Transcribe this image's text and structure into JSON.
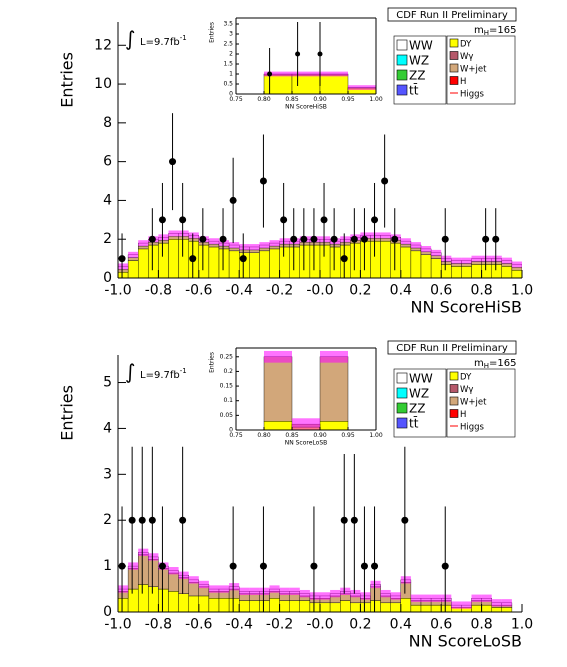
{
  "chart_data": [
    {
      "type": "histogram",
      "title": "CDF Run II Preliminary",
      "xlabel": "NN ScoreHiSB",
      "ylabel": "Entries",
      "mass_label": [
        "m",
        "H",
        "=165"
      ],
      "lumi_label": [
        "∫",
        "L=9.7fb",
        "-1"
      ],
      "xlim": [
        -1,
        1
      ],
      "ylim": [
        0,
        13.2
      ],
      "xticks": [
        {
          "value": -1,
          "label": "-1.0"
        },
        -0.8,
        -0.6,
        -0.4,
        -0.2,
        {
          "value": 0,
          "label": "-0.0"
        },
        0.2,
        0.4,
        0.6,
        0.8,
        {
          "value": 1,
          "label": "1.0"
        }
      ],
      "yticks": [
        0,
        2,
        4,
        6,
        8,
        10,
        12
      ],
      "bins": [
        -1,
        -0.95,
        -0.9,
        -0.85,
        -0.8,
        -0.75,
        -0.7,
        -0.65,
        -0.6,
        -0.55,
        -0.5,
        -0.45,
        -0.4,
        -0.35,
        -0.3,
        -0.25,
        -0.2,
        -0.15,
        -0.1,
        -0.05,
        0,
        0.05,
        0.1,
        0.15,
        0.2,
        0.25,
        0.3,
        0.35,
        0.4,
        0.45,
        0.5,
        0.55,
        0.6,
        0.65,
        0.7,
        0.75,
        0.8,
        0.85,
        0.9,
        0.95,
        1
      ],
      "series": [
        {
          "name": "DY",
          "color": "#ffff00",
          "values": [
            0.3,
            0.9,
            1.5,
            1.7,
            1.8,
            2.0,
            2.0,
            1.9,
            1.7,
            1.6,
            1.5,
            1.4,
            1.3,
            1.3,
            1.4,
            1.5,
            1.6,
            1.6,
            1.7,
            1.7,
            1.7,
            1.6,
            1.7,
            1.8,
            1.9,
            1.9,
            1.9,
            1.8,
            1.6,
            1.4,
            1.2,
            1.0,
            0.7,
            0.6,
            0.6,
            0.7,
            0.7,
            0.7,
            0.6,
            0.4
          ]
        },
        {
          "name": "Wγ",
          "color": "#b5586a"
        },
        {
          "name": "W+jet",
          "color": "#d2a77a",
          "values": [
            0.15,
            0.15,
            0.15,
            0.15,
            0.15,
            0.15,
            0.15,
            0.15,
            0.15,
            0.15,
            0.15,
            0.15,
            0.15,
            0.15,
            0.15,
            0.15,
            0.15,
            0.15,
            0.15,
            0.15,
            0.15,
            0.15,
            0.15,
            0.15,
            0.15,
            0.15,
            0.15,
            0.15,
            0.15,
            0.15,
            0.15,
            0.15,
            0.15,
            0.15,
            0.15,
            0.15,
            0.15,
            0.15,
            0.15,
            0.15
          ]
        },
        {
          "name": "H",
          "color": "#ff0000"
        },
        {
          "name": "Higgs",
          "color": "#ff0000",
          "style": "line"
        },
        {
          "name": "WW",
          "color": "#ffffff",
          "values": [
            0.15,
            0.15,
            0.15,
            0.15,
            0.15,
            0.15,
            0.15,
            0.15,
            0.15,
            0.15,
            0.15,
            0.15,
            0.15,
            0.15,
            0.15,
            0.15,
            0.15,
            0.15,
            0.15,
            0.15,
            0.15,
            0.15,
            0.15,
            0.15,
            0.15,
            0.15,
            0.15,
            0.15,
            0.15,
            0.15,
            0.15,
            0.15,
            0.15,
            0.15,
            0.15,
            0.15,
            0.15,
            0.15,
            0.15,
            0.15
          ]
        },
        {
          "name": "WZ",
          "color": "#00ffff"
        },
        {
          "name": "ZZ",
          "color": "#33cc33"
        },
        {
          "name": "tt̄",
          "color": "#5555ff"
        }
      ],
      "uncertainty": 0.15,
      "uncertainty_color": "#ff00ff",
      "points": {
        "x": [
          -0.98,
          -0.83,
          -0.78,
          -0.73,
          -0.68,
          -0.63,
          -0.58,
          -0.48,
          -0.43,
          -0.38,
          -0.28,
          -0.18,
          -0.13,
          -0.08,
          -0.03,
          0.02,
          0.07,
          0.12,
          0.17,
          0.22,
          0.27,
          0.32,
          0.37,
          0.62,
          0.82,
          0.87
        ],
        "values": [
          1,
          2,
          3,
          6,
          3,
          1,
          2,
          2,
          4,
          1,
          5,
          3,
          2,
          2,
          2,
          3,
          2,
          1,
          2,
          2,
          3,
          5,
          2,
          2,
          2,
          2
        ],
        "errors": [
          1.3,
          1.6,
          1.9,
          2.5,
          1.9,
          1.3,
          1.6,
          1.6,
          2.2,
          1.3,
          2.4,
          1.9,
          1.6,
          1.6,
          1.6,
          1.9,
          1.6,
          1.3,
          1.6,
          1.6,
          1.9,
          2.4,
          1.6,
          1.6,
          1.6,
          1.6
        ]
      }
    },
    {
      "type": "histogram",
      "xlabel": "NN ScoreHiSB",
      "ylabel": "Entries",
      "xlim": [
        0.75,
        1
      ],
      "ylim": [
        0,
        3.8
      ],
      "xticks": [
        0.75,
        {
          "value": 0.8,
          "label": "0.80"
        },
        0.85,
        {
          "value": 0.9,
          "label": "0.90"
        },
        0.95,
        {
          "value": 1,
          "label": "1.00"
        }
      ],
      "yticks": [
        0,
        0.5,
        1,
        1.5,
        2,
        2.5,
        3,
        3.5
      ],
      "bins": [
        0.75,
        0.8,
        0.85,
        0.9,
        0.95,
        1
      ],
      "series": [
        {
          "color": "#ffff00",
          "values": [
            0,
            0.95,
            0.95,
            0.95,
            0.3
          ]
        },
        {
          "color": "#d2a77a",
          "values": [
            0,
            0.05,
            0.05,
            0.05,
            0.02
          ]
        }
      ],
      "uncertainty": 0.12,
      "uncertainty_color": "#ff00ff",
      "points": {
        "x": [
          0.81,
          0.86,
          0.9
        ],
        "values": [
          1,
          2,
          2
        ],
        "errors": [
          1.3,
          1.6,
          1.6
        ]
      }
    },
    {
      "type": "histogram",
      "title": "CDF Run II Preliminary",
      "xlabel": "NN ScoreLoSB",
      "ylabel": "Entries",
      "mass_label": [
        "m",
        "H",
        "=165"
      ],
      "lumi_label": [
        "∫",
        "L=9.7fb",
        "-1"
      ],
      "xlim": [
        -1,
        1
      ],
      "ylim": [
        0,
        5.6
      ],
      "xticks": [
        {
          "value": -1,
          "label": "-1.0"
        },
        -0.8,
        -0.6,
        -0.4,
        -0.2,
        {
          "value": 0,
          "label": "-0.0"
        },
        0.2,
        0.4,
        0.6,
        0.8,
        {
          "value": 1,
          "label": "1.0"
        }
      ],
      "yticks": [
        0,
        1,
        2,
        3,
        4,
        5
      ],
      "bins": [
        -1,
        -0.95,
        -0.9,
        -0.85,
        -0.8,
        -0.75,
        -0.7,
        -0.65,
        -0.6,
        -0.55,
        -0.5,
        -0.45,
        -0.4,
        -0.35,
        -0.3,
        -0.25,
        -0.2,
        -0.15,
        -0.1,
        -0.05,
        0,
        0.05,
        0.1,
        0.15,
        0.2,
        0.25,
        0.3,
        0.35,
        0.4,
        0.45,
        0.5,
        0.55,
        0.6,
        0.65,
        0.7,
        0.75,
        0.8,
        0.85,
        0.9,
        0.95,
        1
      ],
      "series": [
        {
          "name": "DY",
          "color": "#ffff00",
          "values": [
            0.3,
            0.5,
            0.6,
            0.55,
            0.5,
            0.45,
            0.4,
            0.35,
            0.35,
            0.3,
            0.3,
            0.3,
            0.25,
            0.25,
            0.25,
            0.3,
            0.25,
            0.25,
            0.25,
            0.2,
            0.2,
            0.2,
            0.25,
            0.2,
            0.2,
            0.25,
            0.2,
            0.2,
            0.3,
            0.15,
            0.15,
            0.15,
            0.15,
            0.1,
            0.1,
            0.15,
            0.15,
            0.1,
            0.1,
            0
          ]
        },
        {
          "name": "Wγ",
          "color": "#b5586a"
        },
        {
          "name": "W+jet",
          "color": "#d2a77a",
          "values": [
            0.15,
            0.45,
            0.65,
            0.6,
            0.45,
            0.4,
            0.35,
            0.3,
            0.2,
            0.15,
            0.15,
            0.2,
            0.15,
            0.15,
            0.15,
            0.15,
            0.15,
            0.15,
            0.1,
            0.1,
            0.1,
            0.15,
            0.15,
            0.15,
            0.1,
            0.3,
            0.15,
            0.1,
            0.35,
            0.1,
            0.1,
            0.1,
            0.1,
            0,
            0,
            0.1,
            0.1,
            0.05,
            0.05,
            0
          ]
        },
        {
          "name": "H",
          "color": "#ff0000"
        },
        {
          "name": "Higgs",
          "color": "#ff0000",
          "style": "line"
        },
        {
          "name": "WW",
          "color": "#ffffff",
          "values": [
            0.05,
            0.05,
            0.05,
            0.05,
            0.05,
            0.05,
            0.05,
            0.05,
            0.05,
            0.05,
            0.05,
            0.05,
            0.05,
            0.05,
            0.05,
            0.05,
            0.05,
            0.05,
            0.05,
            0.05,
            0.05,
            0.05,
            0.05,
            0.05,
            0.05,
            0.05,
            0.05,
            0.05,
            0.05,
            0.05,
            0.05,
            0.05,
            0.05,
            0.05,
            0.05,
            0.05,
            0.05,
            0.05,
            0.05,
            0
          ]
        },
        {
          "name": "WZ",
          "color": "#00ffff"
        },
        {
          "name": "ZZ",
          "color": "#33cc33"
        },
        {
          "name": "tt̄",
          "color": "#5555ff"
        }
      ],
      "uncertainty": 0.08,
      "uncertainty_color": "#ff00ff",
      "points": {
        "x": [
          -0.98,
          -0.93,
          -0.88,
          -0.83,
          -0.78,
          -0.68,
          -0.43,
          -0.28,
          -0.03,
          0.12,
          0.17,
          0.22,
          0.27,
          0.42,
          0.62
        ],
        "values": [
          1,
          2,
          2,
          2,
          1,
          2,
          1,
          1,
          1,
          2,
          2,
          1,
          1,
          2,
          1
        ],
        "errors": [
          1.3,
          1.6,
          1.6,
          1.6,
          1.3,
          1.6,
          1.3,
          1.3,
          1.3,
          1.6,
          1.6,
          1.3,
          1.3,
          1.6,
          1.3
        ]
      }
    },
    {
      "type": "histogram",
      "xlabel": "NN ScoreLoSB",
      "ylabel": "Entries",
      "xlim": [
        0.75,
        1
      ],
      "ylim": [
        0,
        0.28
      ],
      "xticks": [
        0.75,
        {
          "value": 0.8,
          "label": "0.80"
        },
        0.85,
        {
          "value": 0.9,
          "label": "0.90"
        },
        0.95,
        {
          "value": 1,
          "label": "1.00"
        }
      ],
      "yticks": [
        0,
        0.05,
        0.1,
        0.15,
        0.2,
        0.25
      ],
      "bins": [
        0.75,
        0.8,
        0.85,
        0.9,
        0.95,
        1
      ],
      "series": [
        {
          "color": "#ffff00",
          "values": [
            0,
            0.03,
            0.01,
            0.03,
            0
          ]
        },
        {
          "color": "#d2a77a",
          "values": [
            0,
            0.22,
            0.01,
            0.22,
            0
          ]
        }
      ],
      "uncertainty": 0.02,
      "uncertainty_color": "#ff00ff"
    }
  ]
}
